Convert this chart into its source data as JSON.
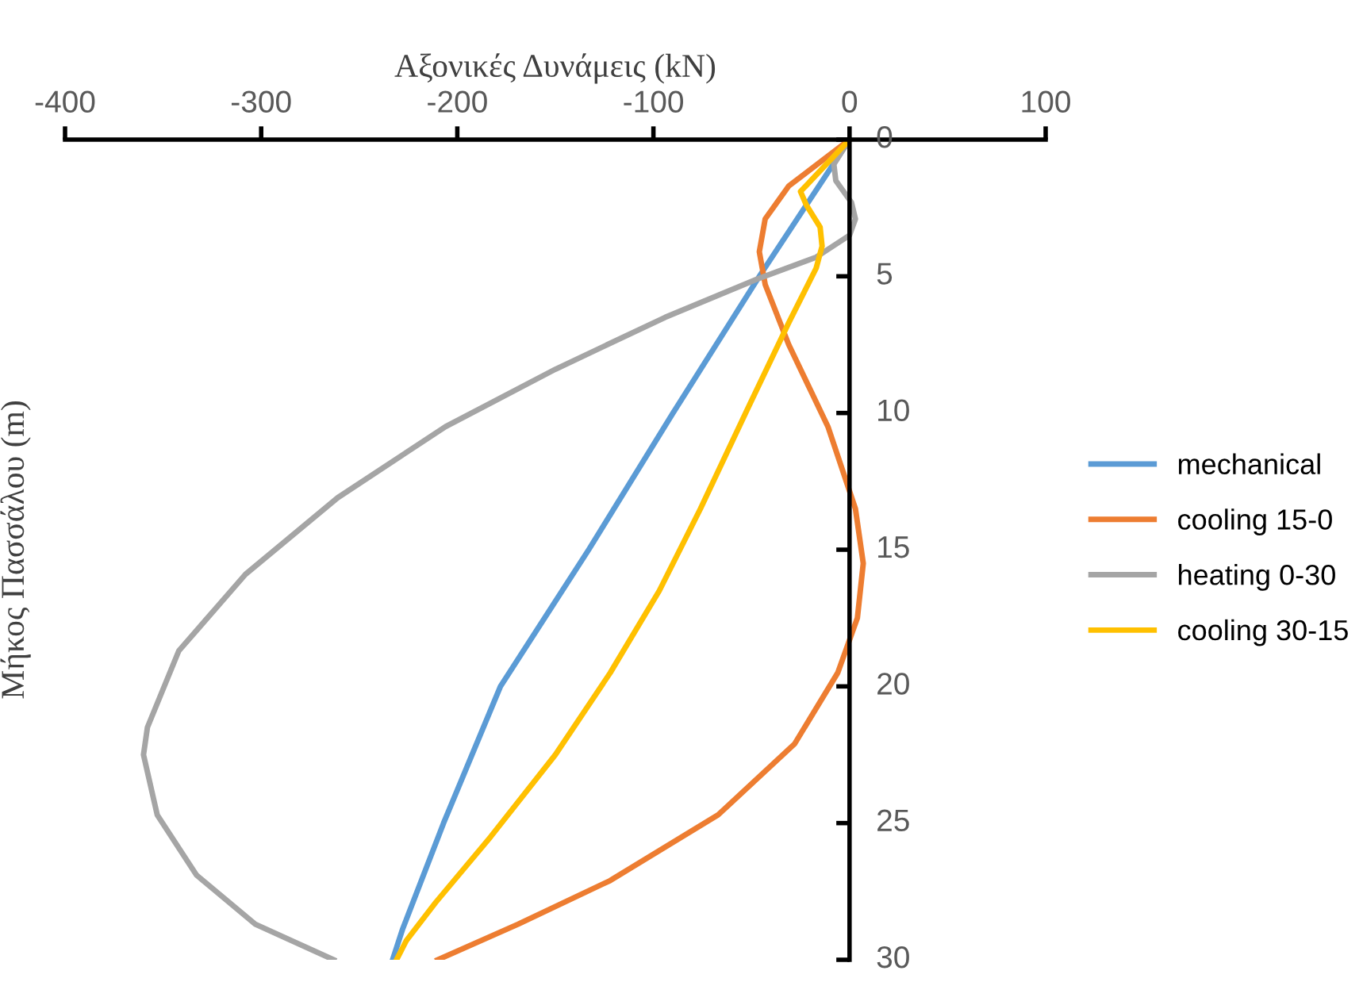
{
  "chart_data": {
    "type": "line",
    "xlabel": "Αξονικές Δυνάμεις (kN)",
    "ylabel": "Μήκος Πασσάλου (m)",
    "xlim": [
      -400,
      100
    ],
    "xticks": [
      -400,
      -300,
      -200,
      -100,
      0,
      100
    ],
    "ylim": [
      30,
      0
    ],
    "yticks": [
      0,
      5,
      10,
      15,
      20,
      25,
      30
    ],
    "grid": false,
    "legend": "right",
    "marker": "none",
    "line_style": "solid",
    "series": [
      {
        "name": "mechanical",
        "color": "#5b9bd5",
        "x": [
          0,
          -46,
          -90,
          -133,
          -178,
          -207,
          -228,
          -233
        ],
        "values": [
          0,
          5,
          10,
          15,
          20,
          25,
          28.9,
          30
        ]
      },
      {
        "name": "cooling 15-0",
        "color": "#ed7d31",
        "x": [
          0,
          -31,
          -43,
          -46,
          -43,
          -31,
          -11,
          3,
          7,
          4,
          -6,
          -28,
          -67,
          -122,
          -169,
          -210
        ],
        "values": [
          0,
          1.7,
          2.9,
          4.1,
          5.3,
          7.5,
          10.5,
          13.5,
          15.5,
          17.5,
          19.5,
          22.1,
          24.7,
          27.1,
          28.7,
          30
        ]
      },
      {
        "name": "heating 0-30",
        "color": "#a5a5a5",
        "x": [
          0,
          -8,
          -7,
          1,
          3,
          0,
          -17,
          -47,
          -94,
          -150,
          -206,
          -261,
          -308,
          -342,
          -358,
          -360,
          -353,
          -333,
          -303,
          -263
        ],
        "values": [
          0,
          0.9,
          1.5,
          2.3,
          2.9,
          3.5,
          4.3,
          5.1,
          6.5,
          8.4,
          10.5,
          13.1,
          15.9,
          18.7,
          21.5,
          22.5,
          24.7,
          26.9,
          28.7,
          30
        ]
      },
      {
        "name": "cooling 30-15",
        "color": "#ffc000",
        "x": [
          0,
          -25,
          -22,
          -15,
          -14,
          -17,
          -31,
          -53,
          -76,
          -97,
          -122,
          -150,
          -183,
          -211,
          -226,
          -231
        ],
        "values": [
          0,
          1.9,
          2.4,
          3.2,
          3.9,
          4.7,
          6.7,
          10,
          13.5,
          16.5,
          19.5,
          22.5,
          25.5,
          27.9,
          29.3,
          30
        ]
      }
    ]
  }
}
